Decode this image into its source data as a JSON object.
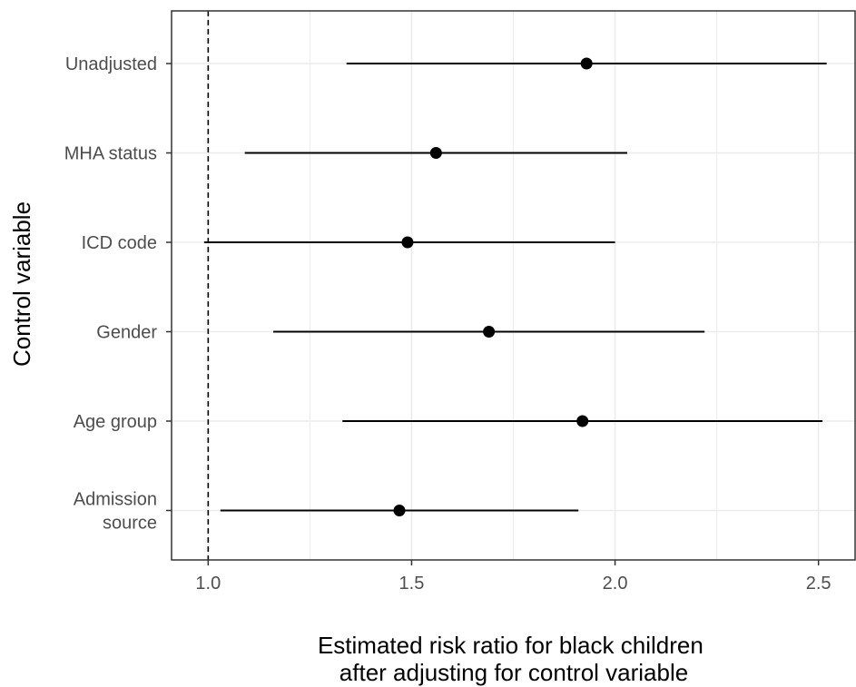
{
  "chart_data": {
    "type": "scatter",
    "subtype": "forest-plot",
    "title": "",
    "xlabel": [
      "Estimated risk ratio for black children",
      "after adjusting for control variable"
    ],
    "ylabel": "Control variable",
    "xlim": [
      0.91,
      2.59
    ],
    "x_ticks": [
      1.0,
      1.5,
      2.0,
      2.5
    ],
    "x_tick_labels": [
      "1.0",
      "1.5",
      "2.0",
      "2.5"
    ],
    "reference_line": {
      "x": 1.0,
      "style": "dashed"
    },
    "categories": [
      [
        "Unadjusted"
      ],
      [
        "MHA status"
      ],
      [
        "ICD code"
      ],
      [
        "Gender"
      ],
      [
        "Age group"
      ],
      [
        "Admission",
        "source"
      ]
    ],
    "estimates": [
      1.93,
      1.56,
      1.49,
      1.69,
      1.92,
      1.47
    ],
    "lower": [
      1.34,
      1.09,
      0.99,
      1.16,
      1.33,
      1.03
    ],
    "upper": [
      2.52,
      2.03,
      2.0,
      2.22,
      2.51,
      1.91
    ],
    "grid": true,
    "legend": "none",
    "colors": {
      "point": "#000000",
      "line": "#000000",
      "grid": "#ebebeb",
      "panel_border": "#333333",
      "tick_text": "#4d4d4d"
    }
  }
}
